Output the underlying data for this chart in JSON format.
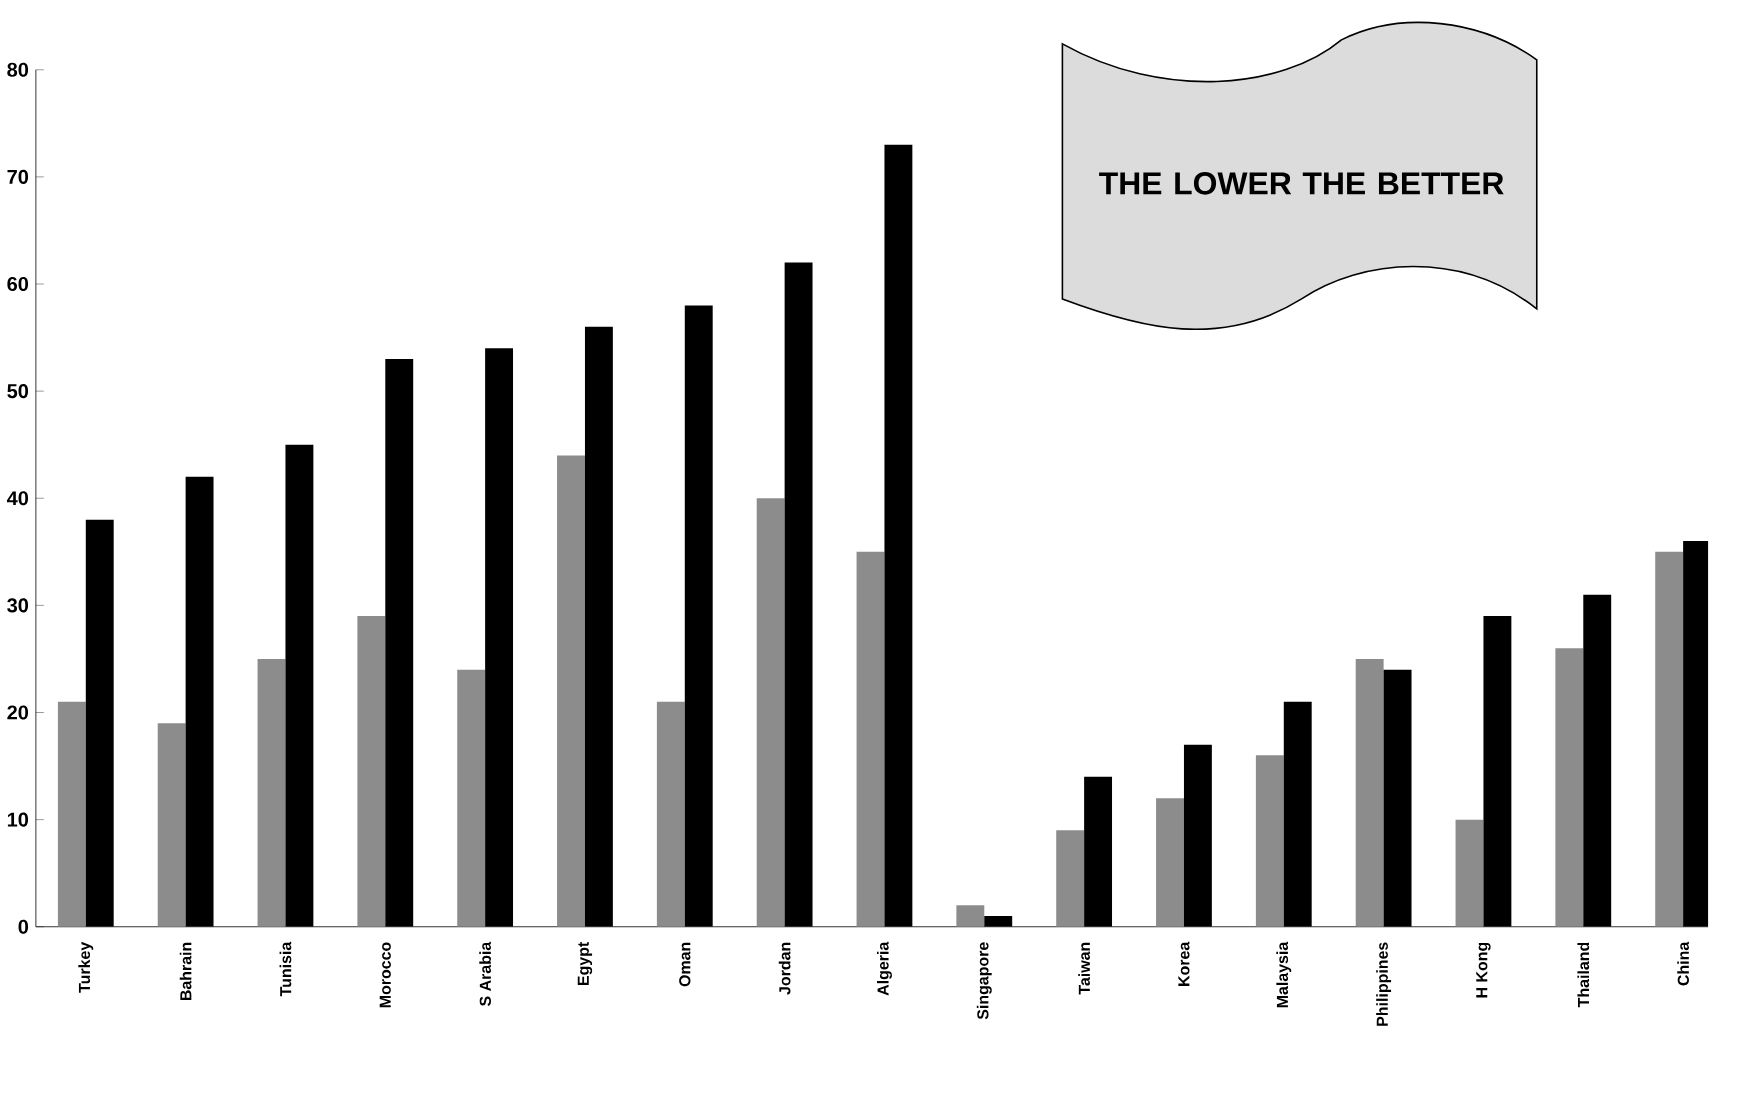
{
  "chart_data": {
    "type": "bar",
    "categories": [
      "Turkey",
      "Bahrain",
      "Tunisia",
      "Morocco",
      "S Arabia",
      "Egypt",
      "Oman",
      "Jordan",
      "Algeria",
      "Singapore",
      "Taiwan",
      "Korea",
      "Malaysia",
      "Philippines",
      "H Kong",
      "Thailand",
      "China"
    ],
    "series": [
      {
        "color": "#8c8c8c",
        "values": [
          21,
          19,
          25,
          29,
          24,
          44,
          21,
          40,
          35,
          2,
          9,
          12,
          16,
          25,
          10,
          26,
          35
        ]
      },
      {
        "color": "#000000",
        "values": [
          38,
          42,
          45,
          53,
          54,
          56,
          58,
          62,
          73,
          1,
          14,
          17,
          21,
          24,
          29,
          31,
          36
        ]
      }
    ],
    "ylim": [
      0,
      80
    ],
    "yticks": [
      0,
      10,
      20,
      30,
      40,
      50,
      60,
      70,
      80
    ],
    "annotations": [
      "THE LOWER THE BETTER"
    ]
  }
}
